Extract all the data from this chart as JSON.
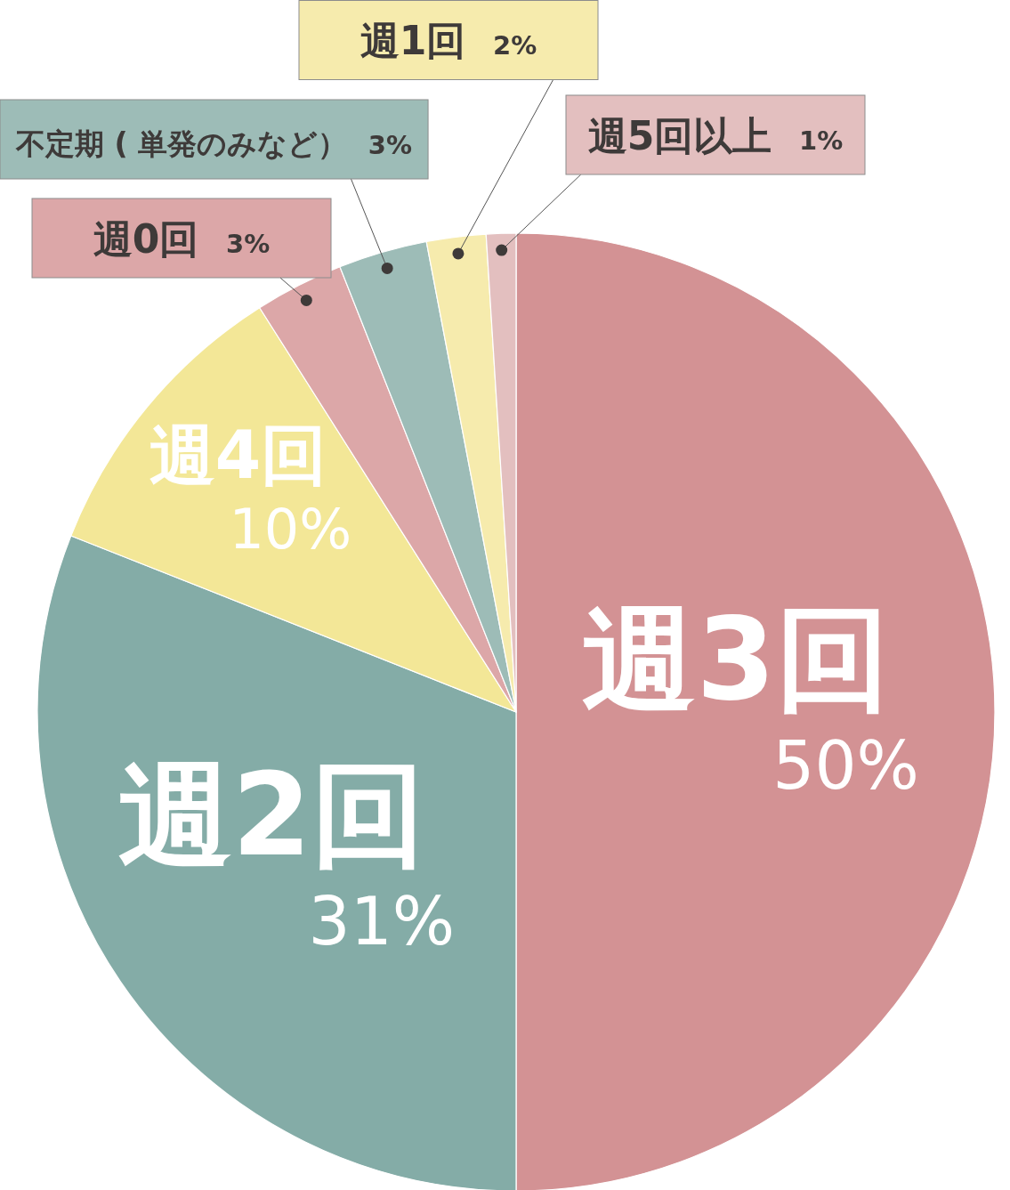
{
  "chart_data": {
    "type": "pie",
    "categories": [
      "週3回",
      "週2回",
      "週4回",
      "週0回",
      "不定期 ( 単発のみなど）",
      "週1回",
      "週5回以上"
    ],
    "values": [
      50,
      31,
      10,
      3,
      3,
      2,
      1
    ],
    "value_labels": [
      "50%",
      "31%",
      "10%",
      "3%",
      "3%",
      "2%",
      "1%"
    ],
    "colors": [
      "#d39294",
      "#84aca7",
      "#f3e797",
      "#dca7a8",
      "#9dbcb7",
      "#f6ebad",
      "#e3bfbf"
    ]
  }
}
